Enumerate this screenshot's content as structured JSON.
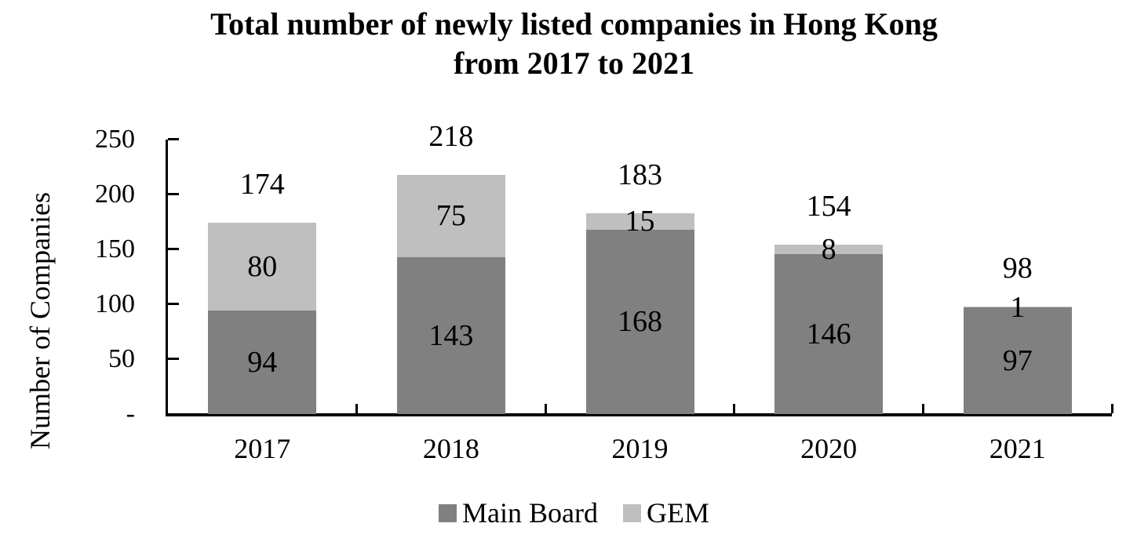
{
  "title": {
    "line1": "Total number of newly listed companies in Hong Kong",
    "line2": "from 2017 to 2021"
  },
  "chart_data": {
    "type": "bar",
    "stacked": true,
    "title": "Total number of newly listed companies in Hong Kong from 2017 to 2021",
    "categories": [
      "2017",
      "2018",
      "2019",
      "2020",
      "2021"
    ],
    "series": [
      {
        "name": "Main Board",
        "color": "#808080",
        "values": [
          94,
          143,
          168,
          146,
          97
        ]
      },
      {
        "name": "GEM",
        "color": "#bfbfbf",
        "values": [
          80,
          75,
          15,
          8,
          1
        ]
      }
    ],
    "totals": [
      174,
      218,
      183,
      154,
      98
    ],
    "xlabel": "",
    "ylabel": "Number of Companies",
    "ylim": [
      0,
      250
    ],
    "yticks": [
      {
        "value": 0,
        "label": "-"
      },
      {
        "value": 50,
        "label": "50"
      },
      {
        "value": 100,
        "label": "100"
      },
      {
        "value": 150,
        "label": "150"
      },
      {
        "value": 200,
        "label": "200"
      },
      {
        "value": 250,
        "label": "250"
      }
    ],
    "grid": false,
    "legend_position": "bottom",
    "text_color": "#000000",
    "axis_color": "#000000",
    "background_color": "#ffffff"
  }
}
